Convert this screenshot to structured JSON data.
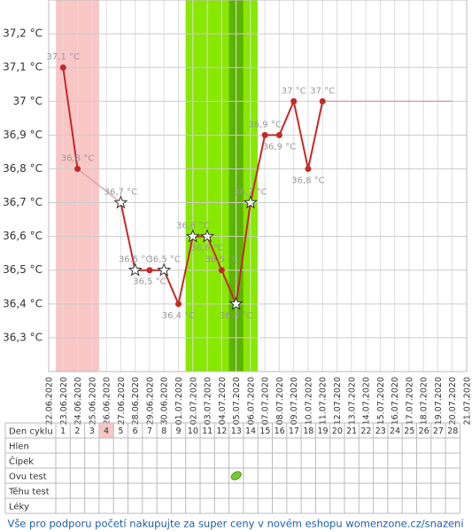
{
  "chart_data": {
    "type": "line",
    "x": [
      "22.06.2020",
      "23.06.2020",
      "24.06.2020",
      "25.06.2020",
      "26.06.2020",
      "27.06.2020",
      "28.06.2020",
      "29.06.2020",
      "30.06.2020",
      "01.07.2020",
      "02.07.2020",
      "03.07.2020",
      "04.07.2020",
      "05.07.2020",
      "06.07.2020",
      "07.07.2020",
      "08.07.2020",
      "09.07.2020",
      "10.07.2020",
      "11.07.2020",
      "12.07.2020",
      "13.07.2020",
      "14.07.2020",
      "15.07.2020",
      "16.07.2020",
      "17.07.2020",
      "18.07.2020",
      "19.07.2020",
      "20.07.2020",
      "21.07.2020"
    ],
    "values": [
      null,
      37.1,
      36.8,
      null,
      null,
      36.7,
      36.5,
      36.5,
      36.5,
      36.4,
      36.6,
      36.6,
      36.5,
      36.4,
      36.7,
      36.9,
      36.9,
      37.0,
      36.8,
      37.0,
      null,
      null,
      null,
      null,
      null,
      null,
      null,
      null,
      null,
      null
    ],
    "value_labels": [
      null,
      "37,1 °C",
      "36,8 °C",
      null,
      null,
      "36,7 °C",
      "36,5 °C",
      "36,5 °C",
      "36,5 °C",
      "36,4 °C",
      "36,6 °C",
      "36,6 °C",
      "36,5 °C",
      "36,4 °C",
      "36,7 °C",
      "36,9 °C",
      "36,9 °C",
      "37 °C",
      "36,8 °C",
      "37 °C",
      null,
      null,
      null,
      null,
      null,
      null,
      null,
      null,
      null,
      null
    ],
    "markers": [
      null,
      "dot",
      "dot",
      null,
      null,
      "star",
      "star",
      "dot",
      "star",
      "dot",
      "star",
      "star",
      "dot",
      "star",
      "star",
      "dot",
      "dot",
      "dot",
      "dot",
      "dot",
      null,
      null,
      null,
      null,
      null,
      null,
      null,
      null,
      null,
      null
    ],
    "color": "#c62828",
    "projection": {
      "from": "11.07.2020",
      "to": "20.07.2020",
      "value": 37.0
    },
    "bands": [
      {
        "from": "23.06.2020",
        "to": "25.06.2020",
        "color": "#f9c6c6"
      },
      {
        "from": "02.07.2020",
        "to": "06.07.2020",
        "color": "#88e800"
      },
      {
        "from": "05.07.2020",
        "to": "05.07.2020",
        "color": "#5cb400"
      }
    ],
    "ylim": [
      36.2,
      37.3
    ],
    "yticks": [
      {
        "value": 36.3,
        "label": "36,3 °C"
      },
      {
        "value": 36.4,
        "label": "36,4 °C"
      },
      {
        "value": 36.5,
        "label": "36,5 °C"
      },
      {
        "value": 36.6,
        "label": "36,6 °C"
      },
      {
        "value": 36.7,
        "label": "36,7 °C"
      },
      {
        "value": 36.8,
        "label": "36,8 °C"
      },
      {
        "value": 36.9,
        "label": "36,9 °C"
      },
      {
        "value": 37.0,
        "label": "37 °C"
      },
      {
        "value": 37.1,
        "label": "37,1 °C"
      },
      {
        "value": 37.2,
        "label": "37,2 °C"
      }
    ],
    "grid": true
  },
  "table": {
    "header": "Den cyklu",
    "days": [
      1,
      2,
      3,
      4,
      5,
      6,
      7,
      8,
      9,
      10,
      11,
      12,
      13,
      14,
      15,
      16,
      17,
      18,
      19,
      20,
      21,
      22,
      23,
      24,
      25,
      26,
      27,
      28
    ],
    "rows": [
      "Hlen",
      "Čípek",
      "Ovu test",
      "Těhu test",
      "Léky"
    ],
    "highlight_day": 4,
    "ovu_test_day": 13
  },
  "footer": "Vše pro podporu početí nakupujte za super ceny v novém eshopu womenzone.cz/snazeni"
}
